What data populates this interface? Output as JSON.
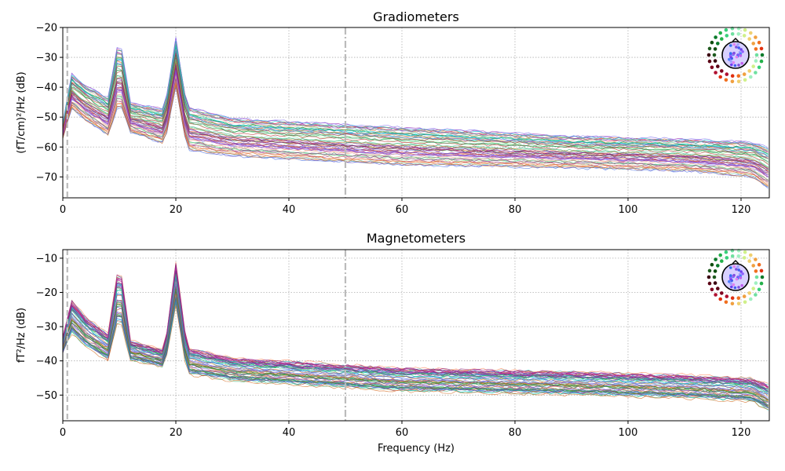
{
  "chart_data": [
    {
      "type": "line",
      "title": "Gradiometers",
      "xlabel": "",
      "ylabel": "(fT/cm)²/Hz (dB)",
      "xlim": [
        0,
        125
      ],
      "ylim": [
        -77,
        -20
      ],
      "xticks": [
        0,
        20,
        40,
        60,
        80,
        100,
        120
      ],
      "yticks": [
        -70,
        -60,
        -50,
        -40,
        -30,
        -20
      ],
      "grid": true,
      "legend": "sensor-layout inset, top-right",
      "vlines": [
        {
          "x": 0.8,
          "style": "dashed",
          "color": "#bbbbbb"
        },
        {
          "x": 50,
          "style": "dashdot",
          "color": "#bbbbbb"
        }
      ],
      "series_count": 60,
      "envelope": {
        "x": [
          0,
          1.5,
          4,
          8,
          10,
          12,
          18,
          20,
          22,
          30,
          60,
          90,
          110,
          122,
          125
        ],
        "upper": [
          -52,
          -35,
          -39,
          -43,
          -22,
          -45,
          -47,
          -23,
          -46,
          -50,
          -53,
          -56,
          -57,
          -58,
          -60
        ],
        "lower": [
          -57,
          -47,
          -51,
          -56,
          -45,
          -55,
          -59,
          -40,
          -61,
          -63,
          -66,
          -67,
          -68,
          -70,
          -74
        ]
      }
    },
    {
      "type": "line",
      "title": "Magnetometers",
      "xlabel": "Frequency (Hz)",
      "ylabel": "fT²/Hz (dB)",
      "xlim": [
        0,
        125
      ],
      "ylim": [
        -57.5,
        -7.5
      ],
      "xticks": [
        0,
        20,
        40,
        60,
        80,
        100,
        120
      ],
      "yticks": [
        -50,
        -40,
        -30,
        -20,
        -10
      ],
      "grid": true,
      "legend": "sensor-layout inset, top-right",
      "vlines": [
        {
          "x": 0.8,
          "style": "dashed",
          "color": "#bbbbbb"
        },
        {
          "x": 50,
          "style": "dashdot",
          "color": "#bbbbbb"
        }
      ],
      "series_count": 60,
      "envelope": {
        "x": [
          0,
          1.5,
          4,
          8,
          10,
          12,
          18,
          20,
          22,
          30,
          60,
          90,
          110,
          122,
          125
        ],
        "upper": [
          -33,
          -22,
          -27,
          -32,
          -10,
          -34,
          -37,
          -11,
          -36,
          -39,
          -42,
          -43,
          -44,
          -45,
          -47
        ],
        "lower": [
          -38,
          -32,
          -36,
          -40,
          -27,
          -40,
          -42,
          -24,
          -44,
          -46,
          -49,
          -50,
          -51,
          -52,
          -55
        ]
      }
    }
  ],
  "colors": {
    "grid": "#b0b0b0",
    "vline": "#bbbbbb",
    "trace_palette": [
      "#8b1a7a",
      "#9a2fb5",
      "#6a5acd",
      "#7b68ee",
      "#c71585",
      "#b22222",
      "#e9967a",
      "#ff7f50",
      "#d2691e",
      "#8b4513",
      "#2e8b57",
      "#3cb371",
      "#66cdaa",
      "#90ee90",
      "#228b22",
      "#00ced1",
      "#4169e1",
      "#20b2aa"
    ]
  }
}
